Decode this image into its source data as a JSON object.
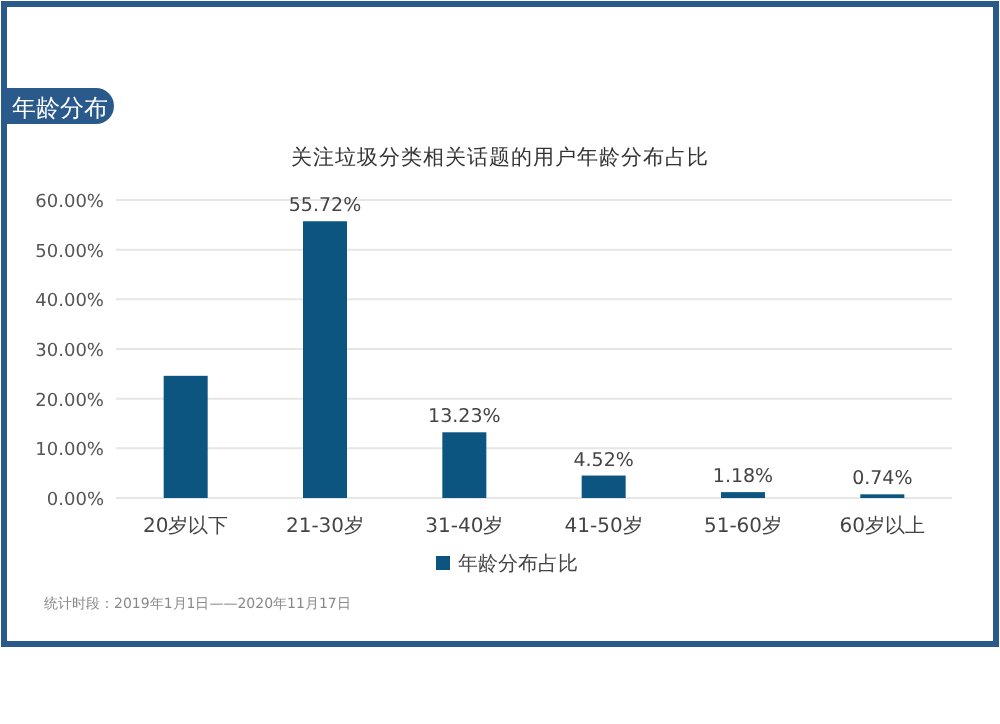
{
  "chart_data": {
    "type": "bar",
    "title": "年龄分布",
    "subtitle": "关注垃圾分类相关话题的用户年龄分布占比",
    "categories": [
      "20岁以下",
      "21-30岁",
      "31-40岁",
      "41-50岁",
      "51-60岁",
      "60岁以上"
    ],
    "series": [
      {
        "name": "年龄分布占比",
        "color": "#0b5580",
        "values": [
          24.6,
          55.72,
          13.23,
          4.52,
          1.18,
          0.74
        ],
        "value_labels": [
          null,
          "55.72%",
          "13.23%",
          "4.52%",
          "1.18%",
          "0.74%"
        ]
      }
    ],
    "ylim": [
      0,
      60
    ],
    "yticks": [
      {
        "value": 0,
        "label": "0.00%"
      },
      {
        "value": 10,
        "label": "10.00%"
      },
      {
        "value": 20,
        "label": "20.00%"
      },
      {
        "value": 30,
        "label": "30.00%"
      },
      {
        "value": 40,
        "label": "40.00%"
      },
      {
        "value": 50,
        "label": "50.00%"
      },
      {
        "value": 60,
        "label": "60.00%"
      }
    ],
    "grid": "y",
    "legend": "bottom",
    "annotations": [
      "统计时段：2019年1月1日——2020年11月17日"
    ]
  }
}
